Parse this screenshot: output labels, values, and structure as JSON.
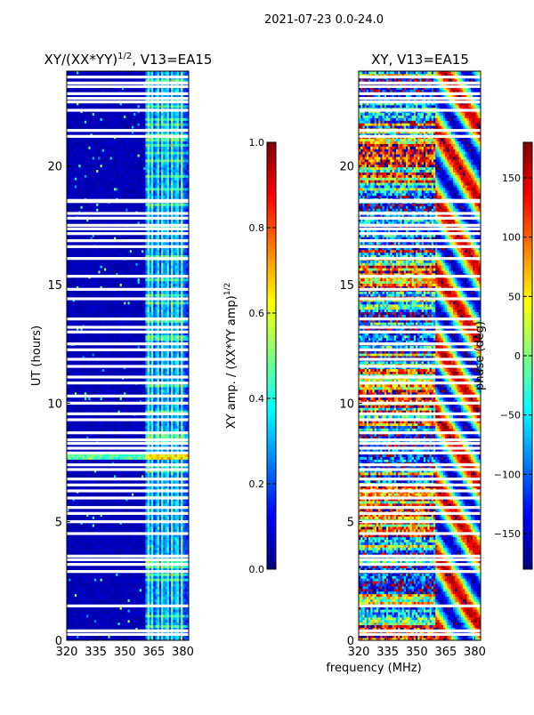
{
  "suptitle": "2021-07-23 0.0-24.0",
  "colors": {
    "background": "#ffffff",
    "gap": "#ffffff",
    "axis": "#000000",
    "jet": [
      "#00007f",
      "#0000ff",
      "#007fff",
      "#00ffff",
      "#7fff7f",
      "#ffff00",
      "#ff7f00",
      "#ff0000",
      "#7f0000"
    ]
  },
  "chart_data": [
    {
      "type": "heatmap",
      "title_main": "XY/(XX*YY)",
      "title_sup": "1/2",
      "title_rest": ", V13=EA15",
      "xlabel": "",
      "ylabel": "UT (hours)",
      "xlim": [
        320,
        383
      ],
      "ylim": [
        0,
        24
      ],
      "xticks": [
        320,
        335,
        350,
        365,
        380
      ],
      "xtick_labels": [
        "320",
        "335",
        "350",
        "365",
        "380"
      ],
      "yticks": [
        0,
        5,
        10,
        15,
        20
      ],
      "ytick_labels": [
        "0",
        "5",
        "10",
        "15",
        "20"
      ],
      "colorbar": {
        "label_main": "XY amp. / (XX*YY amp)",
        "label_sup": "1/2",
        "range": [
          0.0,
          1.0
        ],
        "ticks": [
          0.0,
          0.2,
          0.4,
          0.6,
          0.8,
          1.0
        ],
        "tick_labels": [
          "0.0",
          "0.2",
          "0.4",
          "0.6",
          "0.8",
          "1.0"
        ]
      },
      "gaps_hours": [
        0.25,
        0.4,
        1.45,
        2.9,
        3.2,
        3.4,
        3.55,
        4.5,
        5.0,
        5.35,
        5.6,
        6.0,
        6.3,
        6.55,
        6.8,
        7.2,
        7.4,
        7.9,
        8.1,
        8.3,
        8.45,
        8.75,
        9.3,
        9.55,
        10.0,
        10.3,
        10.85,
        11.1,
        11.55,
        11.85,
        12.25,
        12.5,
        13.0,
        13.2,
        13.55,
        14.4,
        14.8,
        15.35,
        16.1,
        16.6,
        16.85,
        17.15,
        17.35,
        17.5,
        17.8,
        18.0,
        18.5,
        18.55,
        21.25,
        21.5,
        22.35,
        22.7,
        22.85,
        23.05,
        23.35,
        23.5,
        23.75
      ],
      "bright_channels_mhz": [
        362,
        364,
        367,
        369.5,
        372,
        374.5,
        377,
        379.5
      ]
    },
    {
      "type": "heatmap",
      "title_main": "XY, V13=EA15",
      "title_sup": "",
      "title_rest": "",
      "xlabel": "frequency (MHz)",
      "ylabel": "",
      "xlim": [
        320,
        383
      ],
      "ylim": [
        0,
        24
      ],
      "xticks": [
        320,
        335,
        350,
        365,
        380
      ],
      "xtick_labels": [
        "320",
        "335",
        "350",
        "365",
        "380"
      ],
      "yticks": [
        0,
        5,
        10,
        15,
        20
      ],
      "ytick_labels": [
        "0",
        "5",
        "10",
        "15",
        "20"
      ],
      "colorbar": {
        "label_main": "phase (deg)",
        "label_sup": "",
        "range": [
          -180,
          180
        ],
        "ticks": [
          -150,
          -100,
          -50,
          0,
          50,
          100,
          150
        ],
        "tick_labels": [
          "−150",
          "−100",
          "−50",
          "0",
          "50",
          "100",
          "150"
        ]
      },
      "gaps_hours": [
        0.25,
        0.4,
        1.45,
        2.9,
        3.2,
        3.4,
        3.55,
        4.5,
        5.0,
        5.35,
        5.6,
        6.0,
        6.3,
        6.55,
        6.8,
        7.2,
        7.4,
        7.9,
        8.1,
        8.3,
        8.45,
        8.75,
        9.3,
        9.55,
        10.0,
        10.3,
        10.85,
        11.1,
        11.55,
        11.85,
        12.25,
        12.5,
        13.0,
        13.2,
        13.55,
        14.4,
        14.8,
        15.35,
        16.1,
        16.6,
        16.85,
        17.15,
        17.35,
        17.5,
        17.8,
        18.0,
        18.5,
        18.55,
        21.25,
        21.5,
        22.35,
        22.7,
        22.85,
        23.05,
        23.35,
        23.5,
        23.75
      ]
    }
  ]
}
